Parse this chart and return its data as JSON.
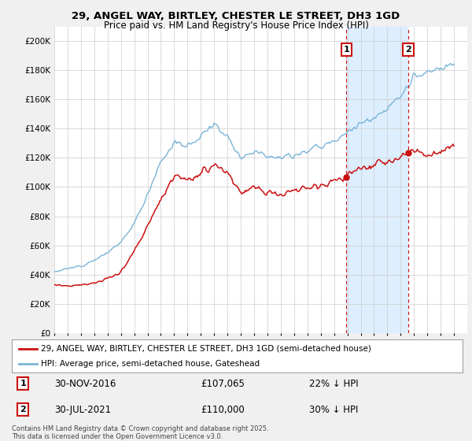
{
  "title1": "29, ANGEL WAY, BIRTLEY, CHESTER LE STREET, DH3 1GD",
  "title2": "Price paid vs. HM Land Registry's House Price Index (HPI)",
  "ylim": [
    0,
    210000
  ],
  "yticks": [
    0,
    20000,
    40000,
    60000,
    80000,
    100000,
    120000,
    140000,
    160000,
    180000,
    200000
  ],
  "ytick_labels": [
    "£0",
    "£20K",
    "£40K",
    "£60K",
    "£80K",
    "£100K",
    "£120K",
    "£140K",
    "£160K",
    "£180K",
    "£200K"
  ],
  "hpi_color": "#7ab4d8",
  "price_color": "#cc1111",
  "shade_color": "#ddeeff",
  "marker1_date": 2016.92,
  "marker2_date": 2021.58,
  "legend_line1": "29, ANGEL WAY, BIRTLEY, CHESTER LE STREET, DH3 1GD (semi-detached house)",
  "legend_line2": "HPI: Average price, semi-detached house, Gateshead",
  "footer": "Contains HM Land Registry data © Crown copyright and database right 2025.\nThis data is licensed under the Open Government Licence v3.0.",
  "background_color": "#f0f0f0",
  "plot_background": "#ffffff",
  "grid_color": "#cccccc",
  "xmin": 1995,
  "xmax": 2026,
  "marker1_price": 107065,
  "marker2_price": 110000
}
